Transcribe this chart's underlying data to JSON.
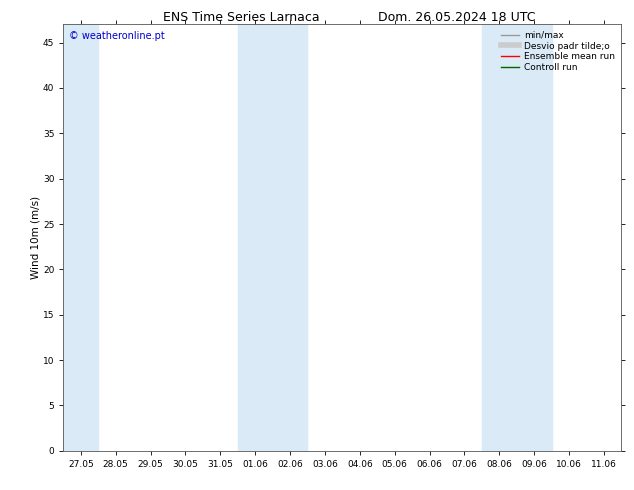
{
  "title_left": "ENS Time Series Larnaca",
  "title_right": "Dom. 26.05.2024 18 UTC",
  "ylabel": "Wind 10m (m/s)",
  "yticks": [
    0,
    5,
    10,
    15,
    20,
    25,
    30,
    35,
    40,
    45
  ],
  "ymax": 47,
  "xtick_labels": [
    "27.05",
    "28.05",
    "29.05",
    "30.05",
    "31.05",
    "01.06",
    "02.06",
    "03.06",
    "04.06",
    "05.06",
    "06.06",
    "07.06",
    "08.06",
    "09.06",
    "10.06",
    "11.06"
  ],
  "shaded_bands": [
    {
      "xstart": -0.5,
      "xend": 0.5
    },
    {
      "xstart": 4.5,
      "xend": 6.5
    },
    {
      "xstart": 11.5,
      "xend": 13.5
    }
  ],
  "shaded_color": "#daeaf7",
  "background_color": "#ffffff",
  "legend_items": [
    {
      "label": "min/max",
      "color": "#999999",
      "linewidth": 1.0,
      "style": "solid"
    },
    {
      "label": "Desvio padr tilde;o",
      "color": "#cccccc",
      "linewidth": 4,
      "style": "solid"
    },
    {
      "label": "Ensemble mean run",
      "color": "#ff0000",
      "linewidth": 1.0,
      "style": "solid"
    },
    {
      "label": "Controll run",
      "color": "#006400",
      "linewidth": 1.0,
      "style": "solid"
    }
  ],
  "watermark_text": "© weatheronline.pt",
  "watermark_color": "#0000cc",
  "title_fontsize": 9,
  "tick_fontsize": 6.5,
  "ylabel_fontsize": 7.5,
  "legend_fontsize": 6.5,
  "watermark_fontsize": 7,
  "spine_color": "#555555"
}
